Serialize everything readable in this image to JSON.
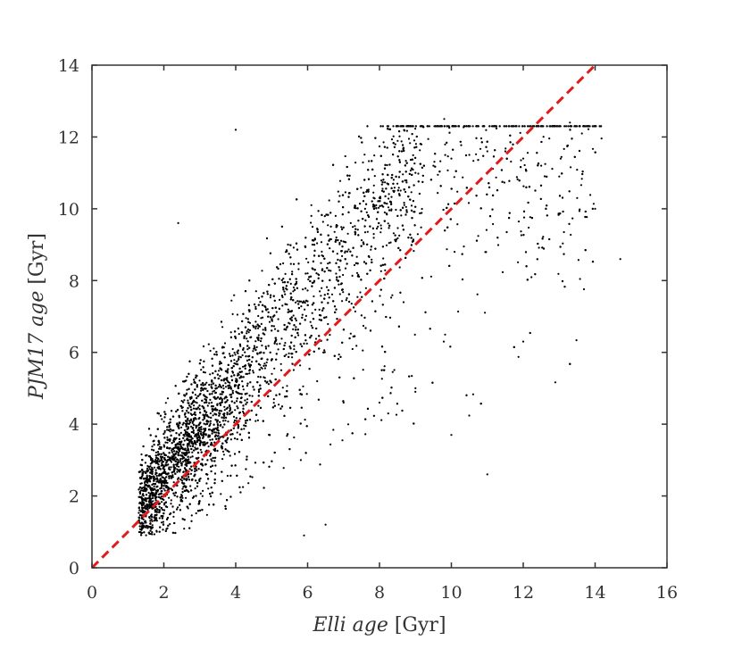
{
  "chart_data": {
    "type": "scatter",
    "xlabel": {
      "italic": "Elli age",
      "unit": " [Gyr]"
    },
    "ylabel": {
      "italic": "PJM17 age",
      "unit": " [Gyr]"
    },
    "xlim": [
      0,
      16
    ],
    "ylim": [
      0,
      14
    ],
    "xticks": [
      "0",
      "2",
      "4",
      "6",
      "8",
      "10",
      "12",
      "14",
      "16"
    ],
    "yticks": [
      "0",
      "2",
      "4",
      "6",
      "8",
      "10",
      "12",
      "14"
    ],
    "grid": false,
    "reference_line": {
      "x": [
        0,
        14
      ],
      "y": [
        0,
        14
      ],
      "style": "dashed",
      "color": "#e31a1c"
    },
    "point_color": "#000000",
    "sample_points": [
      [
        1.4,
        1.9
      ],
      [
        1.6,
        2.0
      ],
      [
        1.8,
        2.4
      ],
      [
        2.0,
        2.2
      ],
      [
        2.2,
        2.8
      ],
      [
        2.4,
        3.0
      ],
      [
        2.6,
        3.2
      ],
      [
        2.8,
        3.6
      ],
      [
        3.0,
        3.9
      ],
      [
        3.2,
        4.1
      ],
      [
        3.4,
        4.4
      ],
      [
        3.6,
        4.6
      ],
      [
        3.8,
        5.0
      ],
      [
        4.0,
        5.2
      ],
      [
        4.2,
        5.6
      ],
      [
        4.5,
        6.1
      ],
      [
        4.8,
        6.5
      ],
      [
        5.0,
        6.9
      ],
      [
        5.3,
        7.3
      ],
      [
        5.6,
        7.7
      ],
      [
        6.0,
        8.2
      ],
      [
        6.4,
        8.7
      ],
      [
        6.8,
        9.2
      ],
      [
        7.2,
        9.6
      ],
      [
        7.6,
        10.0
      ],
      [
        8.0,
        10.3
      ],
      [
        8.5,
        10.7
      ],
      [
        9.0,
        11.0
      ],
      [
        9.5,
        11.2
      ],
      [
        10.0,
        11.4
      ],
      [
        10.5,
        11.5
      ],
      [
        11.0,
        11.6
      ],
      [
        11.5,
        11.6
      ],
      [
        12.0,
        11.4
      ],
      [
        12.5,
        11.2
      ],
      [
        13.0,
        10.9
      ],
      [
        13.5,
        10.3
      ],
      [
        14.0,
        10.0
      ],
      [
        14.7,
        8.6
      ],
      [
        12.0,
        6.3
      ],
      [
        11.0,
        2.6
      ],
      [
        10.0,
        3.7
      ],
      [
        9.0,
        5.0
      ],
      [
        8.0,
        4.6
      ],
      [
        7.0,
        4.6
      ],
      [
        6.5,
        1.2
      ],
      [
        5.9,
        0.9
      ],
      [
        4.0,
        12.2
      ],
      [
        2.4,
        9.6
      ],
      [
        13.3,
        12.4
      ],
      [
        9.8,
        12.5
      ]
    ]
  }
}
